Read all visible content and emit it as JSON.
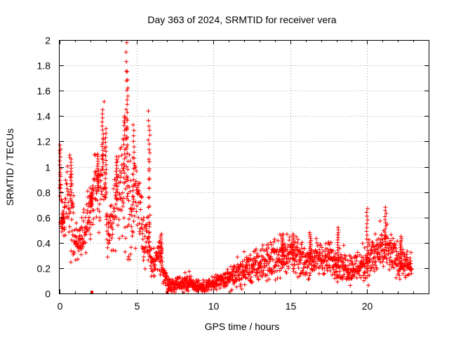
{
  "chart_data": {
    "type": "scatter",
    "title": "Day 363 of 2024, SRMTID for receiver vera",
    "xlabel": "GPS time / hours",
    "ylabel": "SRMTID / TECUs",
    "xlim": [
      0,
      24
    ],
    "ylim": [
      0,
      2
    ],
    "xticks": [
      "0",
      "5",
      "10",
      "15",
      "20"
    ],
    "yticks": [
      "0",
      "0.2",
      "0.4",
      "0.6",
      "0.8",
      "1",
      "1.2",
      "1.4",
      "1.6",
      "1.8",
      "2"
    ],
    "grid": true,
    "marker": "+",
    "color": "#ff0000",
    "envelope": {
      "x": [
        0.0,
        0.2,
        0.4,
        0.6,
        0.8,
        1.0,
        1.2,
        1.5,
        1.8,
        2.0,
        2.3,
        2.6,
        2.9,
        3.1,
        3.4,
        3.6,
        3.9,
        4.1,
        4.3,
        4.5,
        4.7,
        4.9,
        5.1,
        5.3,
        5.5,
        5.7,
        5.9,
        6.1,
        6.4,
        6.7,
        6.9,
        7.1,
        7.4,
        7.8,
        8.2,
        8.6,
        9.0,
        9.4,
        9.8,
        10.2,
        10.6,
        11.0,
        11.5,
        12.0,
        12.5,
        13.0,
        13.5,
        14.0,
        14.5,
        15.0,
        15.5,
        16.0,
        16.5,
        17.0,
        17.5,
        18.0,
        18.5,
        19.0,
        19.5,
        20.0,
        20.5,
        21.0,
        21.5,
        22.0,
        22.5,
        22.9
      ],
      "center": [
        0.8,
        0.55,
        0.65,
        0.8,
        0.7,
        0.4,
        0.35,
        0.45,
        0.6,
        0.65,
        0.9,
        0.8,
        1.1,
        0.5,
        0.55,
        0.7,
        0.85,
        0.75,
        1.0,
        0.7,
        0.55,
        0.9,
        0.65,
        0.55,
        0.35,
        0.45,
        0.3,
        0.2,
        0.35,
        0.2,
        0.12,
        0.08,
        0.07,
        0.08,
        0.1,
        0.08,
        0.06,
        0.05,
        0.07,
        0.08,
        0.1,
        0.12,
        0.15,
        0.18,
        0.2,
        0.22,
        0.25,
        0.28,
        0.3,
        0.32,
        0.27,
        0.25,
        0.27,
        0.28,
        0.27,
        0.25,
        0.22,
        0.2,
        0.22,
        0.25,
        0.3,
        0.35,
        0.32,
        0.26,
        0.22,
        0.2
      ],
      "spread": [
        0.3,
        0.15,
        0.25,
        0.3,
        0.3,
        0.15,
        0.1,
        0.1,
        0.15,
        0.15,
        0.25,
        0.2,
        0.3,
        0.2,
        0.2,
        0.25,
        0.3,
        0.3,
        0.5,
        0.3,
        0.2,
        0.3,
        0.2,
        0.2,
        0.15,
        0.2,
        0.1,
        0.1,
        0.15,
        0.1,
        0.05,
        0.04,
        0.04,
        0.04,
        0.06,
        0.05,
        0.04,
        0.03,
        0.04,
        0.05,
        0.05,
        0.06,
        0.08,
        0.09,
        0.1,
        0.1,
        0.11,
        0.12,
        0.12,
        0.12,
        0.1,
        0.1,
        0.1,
        0.1,
        0.1,
        0.1,
        0.09,
        0.09,
        0.1,
        0.12,
        0.13,
        0.14,
        0.12,
        0.1,
        0.08,
        0.08
      ]
    },
    "peaks": [
      {
        "x": 0.05,
        "y": 1.17
      },
      {
        "x": 0.2,
        "y": 0.6
      },
      {
        "x": 0.75,
        "y": 1.06
      },
      {
        "x": 2.05,
        "y": 0.78
      },
      {
        "x": 2.5,
        "y": 1.1
      },
      {
        "x": 2.8,
        "y": 1.45
      },
      {
        "x": 3.0,
        "y": 1.3
      },
      {
        "x": 3.7,
        "y": 1.08
      },
      {
        "x": 4.2,
        "y": 1.4
      },
      {
        "x": 4.35,
        "y": 1.98
      },
      {
        "x": 4.4,
        "y": 1.75
      },
      {
        "x": 4.8,
        "y": 1.33
      },
      {
        "x": 5.8,
        "y": 1.44
      },
      {
        "x": 5.85,
        "y": 1.32
      },
      {
        "x": 6.6,
        "y": 0.47
      },
      {
        "x": 14.5,
        "y": 0.47
      },
      {
        "x": 15.2,
        "y": 0.47
      },
      {
        "x": 16.3,
        "y": 0.48
      },
      {
        "x": 18.1,
        "y": 0.52
      },
      {
        "x": 20.0,
        "y": 0.67
      },
      {
        "x": 21.2,
        "y": 0.68
      },
      {
        "x": 22.2,
        "y": 0.45
      }
    ],
    "point_count": 1800
  }
}
